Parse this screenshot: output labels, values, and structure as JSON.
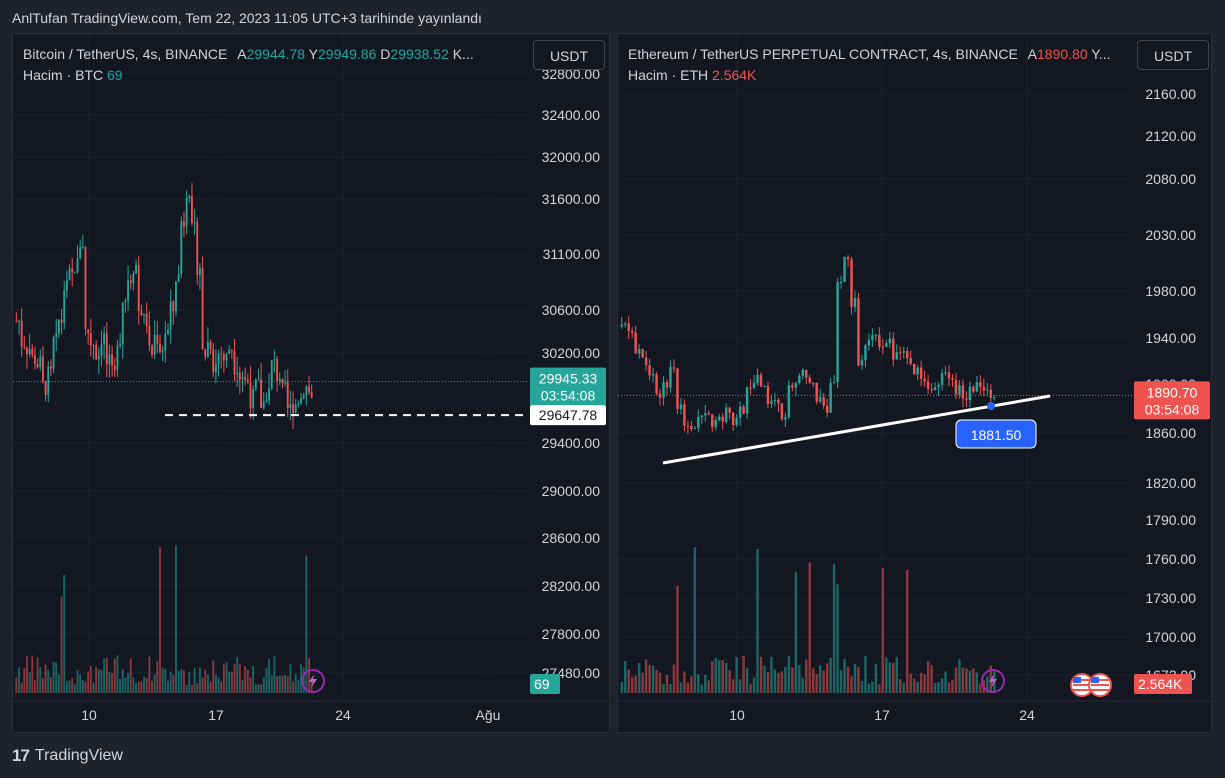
{
  "header": {
    "published": "AnlTufan TradingView.com, Tem 22, 2023 11:05 UTC+3 tarihinde yayınlandı"
  },
  "footer": {
    "brand": "TradingView",
    "logo_icon": "tradingview-logo-icon"
  },
  "colors": {
    "up": "#26a69a",
    "down": "#ef5350",
    "bg": "#131722",
    "grid": "#1e222d",
    "text": "#d1d4dc",
    "blue": "#2962ff"
  },
  "chart_data": [
    {
      "type": "candlestick",
      "symbol": "Bitcoin / TetherUS, 4s, BINANCE",
      "ohlc": {
        "o_label": "A",
        "o": "29944.78",
        "h_label": "Y",
        "h": "29949.86",
        "l_label": "D",
        "l": "29938.52",
        "c_label": "K..."
      },
      "volume_label": "Hacim · BTC",
      "volume_value": "69",
      "currency": "USDT",
      "y_ticks": [
        "32800.00",
        "32400.00",
        "32000.00",
        "31600.00",
        "31100.00",
        "30600.00",
        "30200.00",
        "29400.00",
        "29000.00",
        "28600.00",
        "28200.00",
        "27800.00",
        "27480.00"
      ],
      "y_tick_values": [
        32800,
        32400,
        32000,
        31600,
        31100,
        30600,
        30200,
        29400,
        29000,
        28600,
        28200,
        27800,
        27480
      ],
      "x_ticks": [
        "10",
        "17",
        "24",
        "Ağu"
      ],
      "last_price": "29945.33",
      "last_price_value": 29945.33,
      "countdown": "03:54:08",
      "support_level": "29647.78",
      "support_value": 29647.78,
      "volume_tag": "69",
      "price_path": [
        30500,
        30300,
        30250,
        30150,
        30100,
        29900,
        30000,
        30300,
        30500,
        30800,
        30900,
        31000,
        31200,
        30400,
        30300,
        30200,
        30350,
        30100,
        30000,
        30350,
        30700,
        30900,
        31000,
        30600,
        30500,
        30200,
        30350,
        30250,
        30400,
        30600,
        30900,
        31400,
        31700,
        31300,
        31000,
        30200,
        30300,
        30100,
        30200,
        30150,
        30250,
        30100,
        30000,
        29950,
        29800,
        29900,
        29750,
        29850,
        30100,
        30000,
        29850,
        29700,
        29750,
        29800,
        29900,
        29850
      ]
    },
    {
      "type": "candlestick",
      "symbol": "Ethereum / TetherUS PERPETUAL CONTRACT, 4s, BINANCE",
      "ohlc": {
        "o_label": "A",
        "o": "1890.80",
        "h_label": "Y..."
      },
      "volume_label": "Hacim · ETH",
      "volume_value": "2.564K",
      "currency": "USDT",
      "y_ticks": [
        "2160.00",
        "2120.00",
        "2080.00",
        "2030.00",
        "1980.00",
        "1940.00",
        "1900.00",
        "1860.00",
        "1820.00",
        "1790.00",
        "1760.00",
        "1730.00",
        "1700.00",
        "1672.00"
      ],
      "y_tick_values": [
        2160,
        2120,
        2080,
        2030,
        1980,
        1940,
        1900,
        1860,
        1820,
        1790,
        1760,
        1730,
        1700,
        1672
      ],
      "x_ticks": [
        "10",
        "17",
        "24"
      ],
      "last_price": "1890.70",
      "last_price_value": 1890.7,
      "countdown": "03:54:08",
      "trendline_label": "1881.50",
      "trendline_value": 1881.5,
      "volume_tag": "2.564K",
      "price_path": [
        1950,
        1945,
        1930,
        1920,
        1905,
        1890,
        1900,
        1915,
        1880,
        1865,
        1862,
        1870,
        1875,
        1868,
        1872,
        1878,
        1870,
        1880,
        1895,
        1905,
        1900,
        1885,
        1888,
        1875,
        1895,
        1905,
        1910,
        1900,
        1890,
        1880,
        1900,
        1990,
        2010,
        1970,
        1920,
        1935,
        1940,
        1930,
        1935,
        1925,
        1930,
        1920,
        1910,
        1905,
        1895,
        1900,
        1910,
        1905,
        1895,
        1890,
        1895,
        1900,
        1893,
        1891
      ]
    }
  ]
}
